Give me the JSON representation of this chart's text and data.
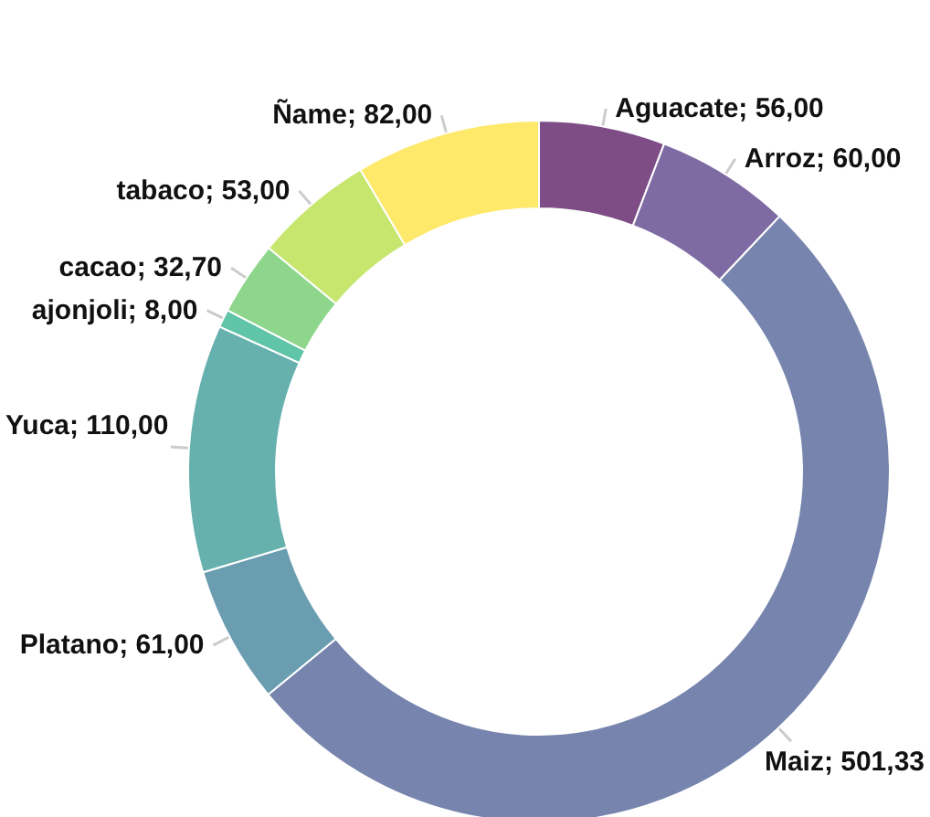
{
  "chart_data": {
    "type": "donut",
    "categories": [
      "Aguacate",
      "Arroz",
      "Maiz",
      "Platano",
      "Yuca",
      "ajonjoli",
      "cacao",
      "tabaco",
      "Ñame"
    ],
    "values": [
      56,
      60,
      501.33,
      61,
      110,
      8,
      32.7,
      53,
      82
    ],
    "value_labels": [
      "56,00",
      "60,00",
      "501,33",
      "61,00",
      "110,00",
      "8,00",
      "32,70",
      "53,00",
      "82,00"
    ],
    "colors": [
      "#7e4d86",
      "#7f6ba3",
      "#7785ae",
      "#6a9db0",
      "#66b0ad",
      "#60c4a8",
      "#8dd68c",
      "#c6e66e",
      "#fee96a"
    ],
    "legend": false
  }
}
